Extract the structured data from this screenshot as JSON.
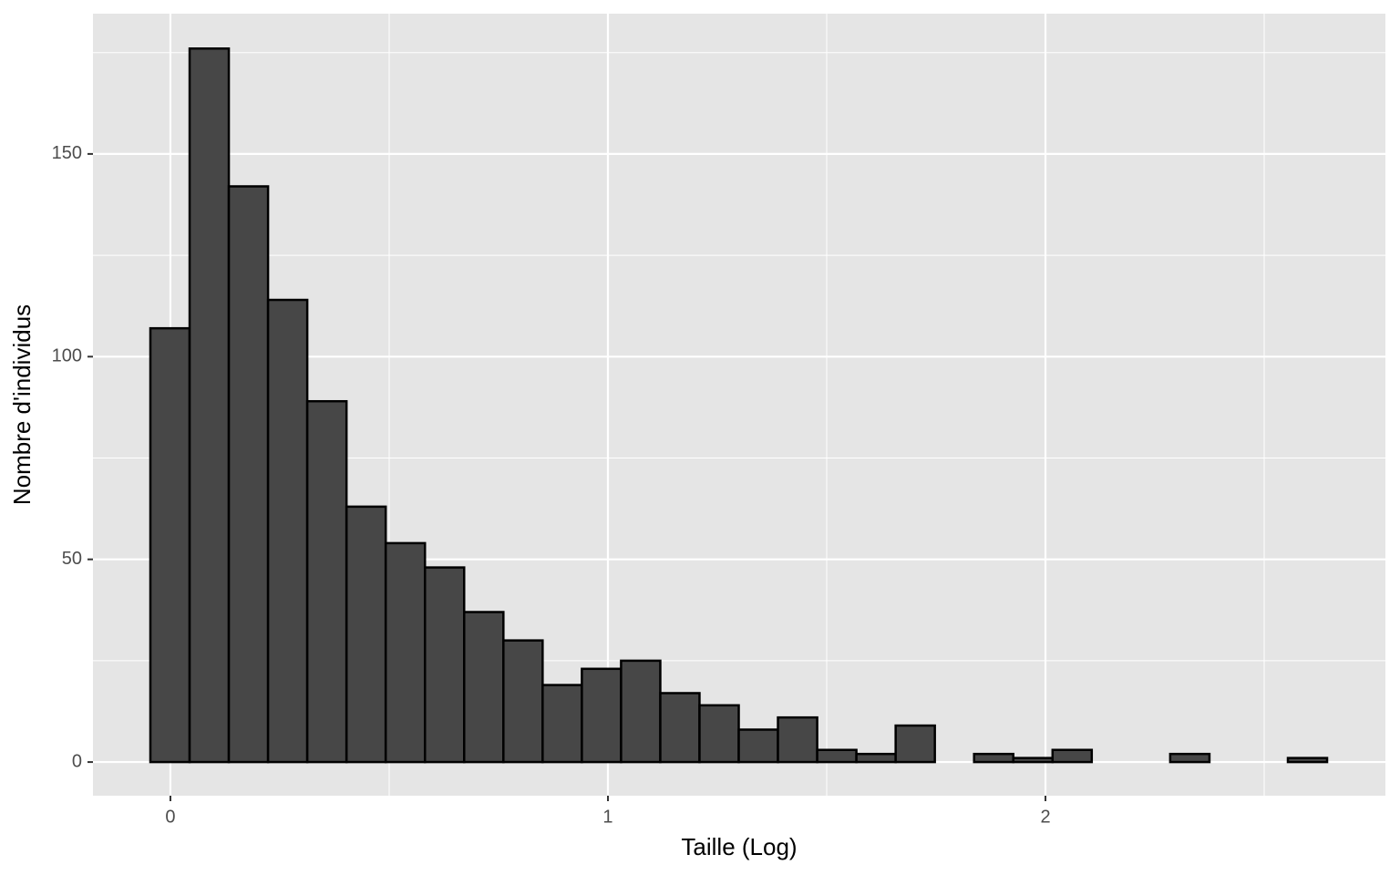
{
  "chart_data": {
    "type": "histogram",
    "x_label": "Taille (Log)",
    "y_label": "Nombre d'individus",
    "bins": [
      -0.0458,
      0.0439,
      0.1335,
      0.2232,
      0.3128,
      0.4025,
      0.4921,
      0.5818,
      0.6714,
      0.7611,
      0.8507,
      0.9404,
      1.03,
      1.1197,
      1.2093,
      1.299,
      1.3886,
      1.4783,
      1.5679,
      1.6576,
      1.7472,
      1.8369,
      1.9265,
      2.0162,
      2.1058,
      2.1955,
      2.2851,
      2.3748,
      2.4644,
      2.5541,
      2.6437
    ],
    "values": [
      107,
      176,
      142,
      114,
      89,
      63,
      54,
      48,
      37,
      30,
      19,
      23,
      25,
      17,
      14,
      8,
      11,
      3,
      2,
      9,
      0,
      2,
      1,
      3,
      0,
      0,
      2,
      0,
      0,
      1
    ],
    "color": "#474747",
    "edge_color": "#000000",
    "background": "#e5e5e5",
    "grid_color": "#ffffff",
    "xlim": [
      -0.177,
      2.777
    ],
    "ylim": [
      -8.3,
      184.6
    ],
    "xticks": [
      0,
      1,
      2
    ],
    "yticks": [
      0,
      50,
      100,
      150
    ],
    "x_minor_ticks": [
      0.5,
      1.5,
      2.5
    ],
    "y_minor_ticks": [
      25,
      75,
      125,
      175
    ],
    "grid": true
  }
}
